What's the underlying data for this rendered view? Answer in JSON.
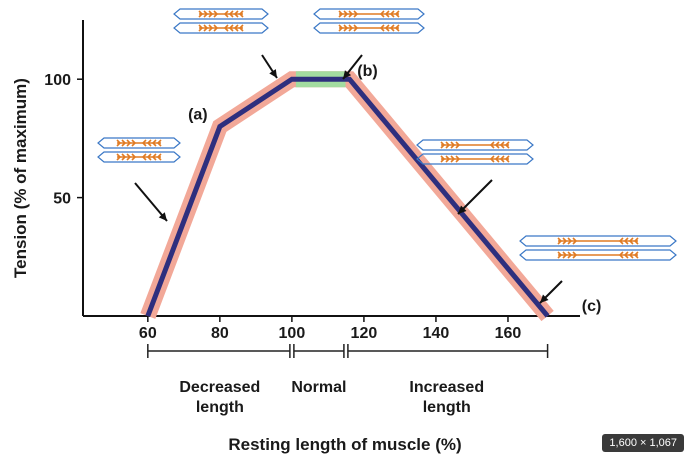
{
  "chart_data": {
    "type": "line",
    "xlabel": "Resting length of muscle (%)",
    "ylabel": "Tension (% of maximum)",
    "x_ticks": [
      "60",
      "80",
      "100",
      "120",
      "140",
      "160"
    ],
    "y_ticks": [
      "50",
      "100"
    ],
    "xlim": [
      42,
      180
    ],
    "ylim": [
      0,
      125
    ],
    "series": [
      {
        "x": [
          60,
          80,
          100,
          116,
          171
        ],
        "y": [
          0,
          80,
          100,
          100,
          0
        ]
      }
    ],
    "annotations": [
      {
        "label": "(a)",
        "x": 80,
        "y": 80
      },
      {
        "label": "(b)",
        "x": 116,
        "y": 100
      },
      {
        "label": "(c)",
        "x": 171,
        "y": 0
      }
    ],
    "regions": [
      {
        "label_lines": [
          "Decreased",
          "length"
        ],
        "from": 60,
        "to": 100
      },
      {
        "label_lines": [
          "Normal"
        ],
        "from": 100,
        "to": 115
      },
      {
        "label_lines": [
          "Increased",
          "length"
        ],
        "from": 115,
        "to": 171
      }
    ],
    "colors": {
      "line": "#2e2f7e",
      "halo": "#f2a898",
      "plateau_halo": "#a3dca0",
      "filament": "#e07b24",
      "sarcomere": "#3b78c6"
    },
    "icons": [
      "sarcomere-icon"
    ]
  },
  "badge": "1,600 × 1,067"
}
